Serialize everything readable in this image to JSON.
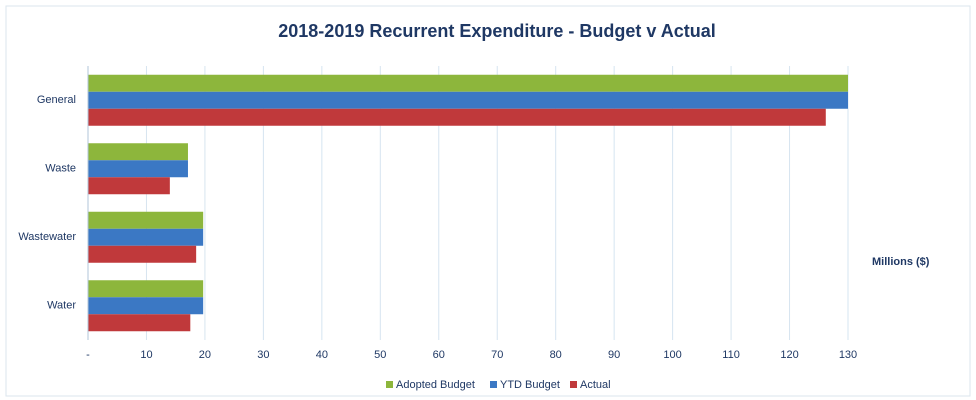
{
  "chart_data": {
    "type": "bar",
    "orientation": "horizontal",
    "title": "2018-2019 Recurrent Expenditure - Budget v Actual",
    "x_label": "Millions ($)",
    "categories": [
      "General",
      "Waste",
      "Wastewater",
      "Water"
    ],
    "series": [
      {
        "name": "Adopted Budget",
        "color": "#8db63c",
        "values": [
          130,
          17.1,
          19.7,
          19.7
        ]
      },
      {
        "name": "YTD Budget",
        "color": "#3b78c4",
        "values": [
          130,
          17.1,
          19.7,
          19.7
        ]
      },
      {
        "name": "Actual",
        "color": "#c0393b",
        "values": [
          126.2,
          14,
          18.5,
          17.5
        ]
      }
    ],
    "xlim": [
      0,
      130
    ],
    "xticks": [
      {
        "value": 0,
        "label": "-"
      },
      10,
      20,
      30,
      40,
      50,
      60,
      70,
      80,
      90,
      100,
      110,
      120,
      130
    ],
    "grid": true,
    "legend": "bottom"
  }
}
